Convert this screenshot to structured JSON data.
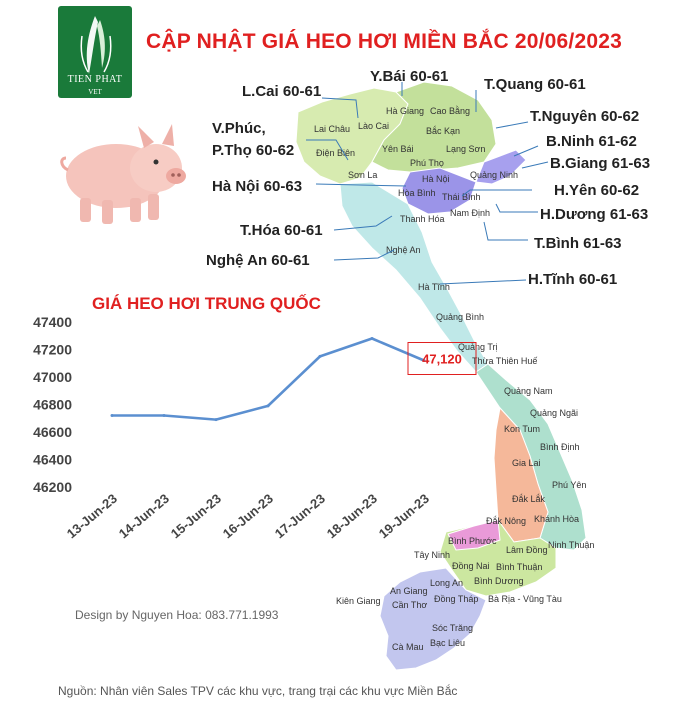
{
  "header": {
    "title": "CẬP NHẬT GIÁ HEO HƠI MIỀN BẮC 20/06/2023",
    "logo_text": "TIEN PHAT",
    "logo_sub": "VET"
  },
  "provinces": [
    {
      "label": "L.Cai 60-61"
    },
    {
      "label": "Y.Bái 60-61"
    },
    {
      "label": "T.Quang 60-61"
    },
    {
      "label": "T.Nguyên 60-62"
    },
    {
      "label": "V.Phúc,"
    },
    {
      "label": "P.Thọ 60-62"
    },
    {
      "label": "B.Ninh 61-62"
    },
    {
      "label": "B.Giang 61-63"
    },
    {
      "label": "Hà Nội 60-63"
    },
    {
      "label": "H.Yên 60-62"
    },
    {
      "label": "H.Dương 61-63"
    },
    {
      "label": "T.Hóa 60-61"
    },
    {
      "label": "T.Bình 61-63"
    },
    {
      "label": "Nghệ An 60-61"
    },
    {
      "label": "H.Tĩnh 60-61"
    }
  ],
  "map_labels": [
    "Lai Châu",
    "Lào Cai",
    "Hà Giang",
    "Cao Bằng",
    "Bắc Kạn",
    "Lạng Sơn",
    "Điện Biên",
    "Yên Bái",
    "Phú Thọ",
    "Sơn La",
    "Hà Nội",
    "Quảng Ninh",
    "Hòa Bình",
    "Thái Bình",
    "Nam Định",
    "Thanh Hóa",
    "Nghệ An",
    "Hà Tĩnh",
    "Quảng Bình",
    "Quảng Trị",
    "Thừa Thiên Huế",
    "Quảng Nam",
    "Quảng Ngãi",
    "Kon Tum",
    "Bình Định",
    "Gia Lai",
    "Phú Yên",
    "Đắk Lắk",
    "Đắk Nông",
    "Khánh Hòa",
    "Bình Phước",
    "Lâm Đồng",
    "Tây Ninh",
    "Đồng Nai",
    "Bình Thuận",
    "Ninh Thuận",
    "Long An",
    "Bình Dương",
    "An Giang",
    "Đồng Tháp",
    "Bà Rịa - Vũng Tàu",
    "Kiên Giang",
    "Cần Thơ",
    "Sóc Trăng",
    "Cà Mau",
    "Bạc Liêu"
  ],
  "chart_data": {
    "type": "line",
    "title": "GIÁ HEO HƠI TRUNG QUỐC",
    "categories": [
      "13-Jun-23",
      "14-Jun-23",
      "15-Jun-23",
      "16-Jun-23",
      "17-Jun-23",
      "18-Jun-23",
      "19-Jun-23"
    ],
    "values": [
      46720,
      46720,
      46690,
      46790,
      47150,
      47280,
      47120
    ],
    "yticks": [
      46200,
      46400,
      46600,
      46800,
      47000,
      47200,
      47400
    ],
    "ylim": [
      46200,
      47400
    ],
    "grid": false,
    "line_color": "#5b8fd0",
    "annotation": "47,120",
    "annotation_color": "#e02020"
  },
  "footer": {
    "credit": "Design by Nguyen Hoa: 083.771.1993",
    "source": "Nguồn: Nhân viên Sales TPV các khu vực, trang trại các khu vực Miền Bắc"
  }
}
